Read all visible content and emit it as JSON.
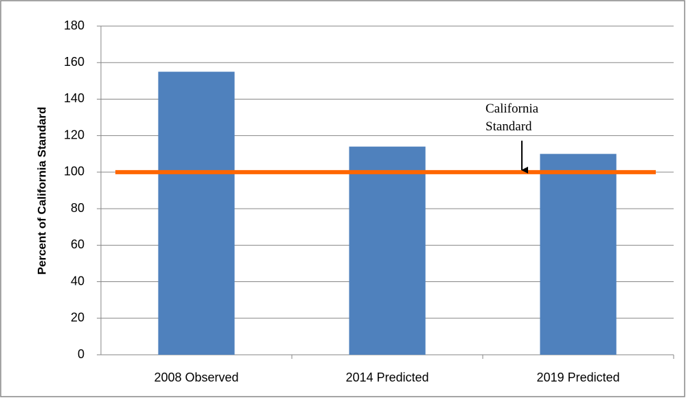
{
  "chart_data": {
    "type": "bar",
    "y_label": "Percent of California Standard",
    "categories": [
      "2008 Observed",
      "2014 Predicted",
      "2019 Predicted"
    ],
    "values": [
      155,
      114,
      110
    ],
    "color": "#4f81bd",
    "ylim": [
      0,
      180
    ],
    "yticks": [
      0,
      20,
      40,
      60,
      80,
      100,
      120,
      140,
      160,
      180
    ],
    "grid": true,
    "reference_line": {
      "value": 100,
      "color": "#ff6600"
    },
    "annotation": "California Standard"
  }
}
